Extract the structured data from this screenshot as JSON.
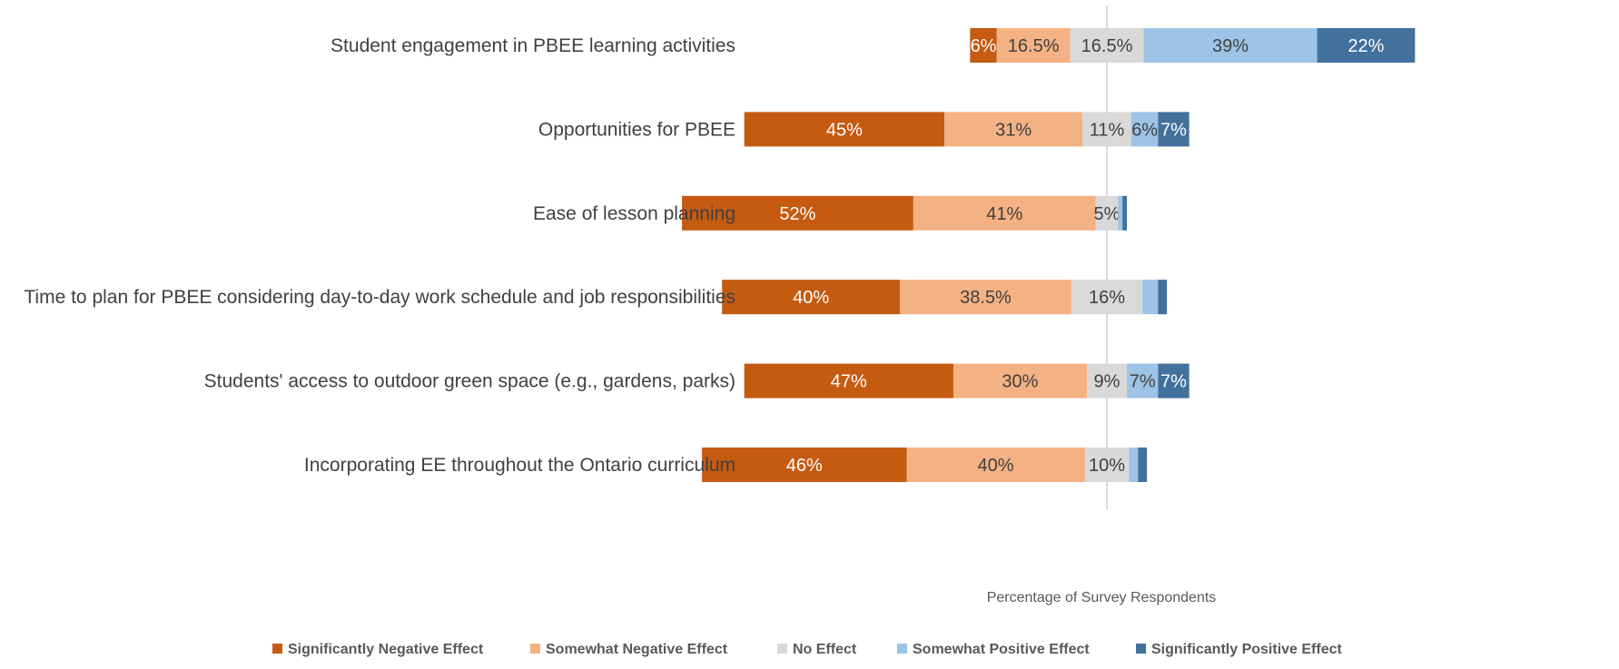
{
  "chart_data": {
    "type": "bar",
    "orientation": "horizontal",
    "stacked": true,
    "diverging": true,
    "title": "",
    "xlabel": "Percentage of Survey Respondents",
    "ylabel": "",
    "categories": [
      "Student engagement in PBEE learning activities",
      "Opportunities for PBEE",
      "Ease of lesson planning",
      "Time to plan for PBEE considering day-to-day work schedule and job responsibilities",
      "Students' access to outdoor green space (e.g., gardens, parks)",
      "Incorporating EE throughout the Ontario curriculum"
    ],
    "series": [
      {
        "name": "Significantly Negative Effect",
        "color": "#C55A11",
        "label_color": "#FFFFFF",
        "values": [
          6,
          45,
          52,
          40,
          47,
          46
        ],
        "labels": [
          "6%",
          "45%",
          "52%",
          "40%",
          "47%",
          "46%"
        ]
      },
      {
        "name": "Somewhat Negative Effect",
        "color": "#F4B183",
        "label_color": "#404040",
        "values": [
          16.5,
          31,
          41,
          38.5,
          30,
          40
        ],
        "labels": [
          "16.5%",
          "31%",
          "41%",
          "38.5%",
          "30%",
          "40%"
        ]
      },
      {
        "name": "No Effect",
        "color": "#D9D9D9",
        "label_color": "#404040",
        "values": [
          16.5,
          11,
          5,
          16,
          9,
          10
        ],
        "labels": [
          "16.5%",
          "11%",
          "5%",
          "16%",
          "9%",
          "10%"
        ]
      },
      {
        "name": "Somewhat Positive Effect",
        "color": "#9DC3E6",
        "label_color": "#404040",
        "values": [
          39,
          6,
          1,
          3.5,
          7,
          2
        ],
        "labels": [
          "39%",
          "6%",
          "",
          "",
          "7%",
          ""
        ]
      },
      {
        "name": "Significantly Positive Effect",
        "color": "#41719C",
        "label_color": "#FFFFFF",
        "values": [
          22,
          7,
          1,
          2,
          7,
          2
        ],
        "labels": [
          "22%",
          "7%",
          "",
          "",
          "7%",
          ""
        ]
      }
    ],
    "neutral_series_index": 2,
    "legend_position": "bottom",
    "grid": false
  }
}
